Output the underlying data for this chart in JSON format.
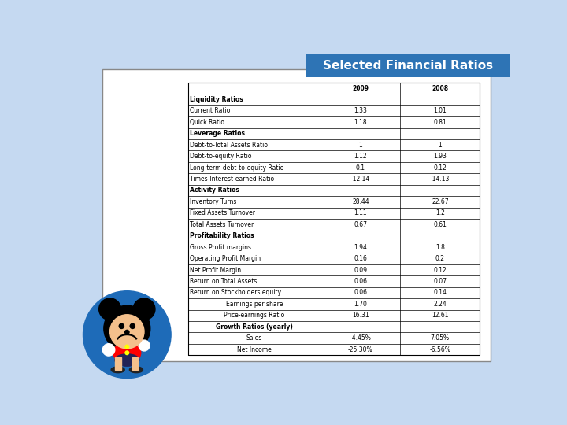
{
  "title": "Selected Financial Ratios",
  "title_bg": "#2E74B5",
  "title_color": "#FFFFFF",
  "rows": [
    {
      "label": "Liquidity Ratios",
      "val2009": "",
      "val2008": "",
      "bold": true,
      "center_label": false
    },
    {
      "label": "Current Ratio",
      "val2009": "1.33",
      "val2008": "1.01",
      "bold": false,
      "center_label": false
    },
    {
      "label": "Quick Ratio",
      "val2009": "1.18",
      "val2008": "0.81",
      "bold": false,
      "center_label": false
    },
    {
      "label": "Leverage Ratios",
      "val2009": "",
      "val2008": "",
      "bold": true,
      "center_label": false
    },
    {
      "label": "Debt-to-Total Assets Ratio",
      "val2009": "1",
      "val2008": "1",
      "bold": false,
      "center_label": false
    },
    {
      "label": "Debt-to-equity Ratio",
      "val2009": "1.12",
      "val2008": "1.93",
      "bold": false,
      "center_label": false
    },
    {
      "label": "Long-term debt-to-equity Ratio",
      "val2009": "0.1",
      "val2008": "0.12",
      "bold": false,
      "center_label": false
    },
    {
      "label": "Times-Interest-earned Ratio",
      "val2009": "-12.14",
      "val2008": "-14.13",
      "bold": false,
      "center_label": false
    },
    {
      "label": "Activity Ratios",
      "val2009": "",
      "val2008": "",
      "bold": true,
      "center_label": false
    },
    {
      "label": "Inventory Turns",
      "val2009": "28.44",
      "val2008": "22.67",
      "bold": false,
      "center_label": false
    },
    {
      "label": "Fixed Assets Turnover",
      "val2009": "1.11",
      "val2008": "1.2",
      "bold": false,
      "center_label": false
    },
    {
      "label": "Total Assets Turnover",
      "val2009": "0.67",
      "val2008": "0.61",
      "bold": false,
      "center_label": false
    },
    {
      "label": "Profitability Ratios",
      "val2009": "",
      "val2008": "",
      "bold": true,
      "center_label": false
    },
    {
      "label": "Gross Profit margins",
      "val2009": "1.94",
      "val2008": "1.8",
      "bold": false,
      "center_label": false
    },
    {
      "label": "Operating Profit Margin",
      "val2009": "0.16",
      "val2008": "0.2",
      "bold": false,
      "center_label": false
    },
    {
      "label": "Net Profit Margin",
      "val2009": "0.09",
      "val2008": "0.12",
      "bold": false,
      "center_label": false
    },
    {
      "label": "Return on Total Assets",
      "val2009": "0.06",
      "val2008": "0.07",
      "bold": false,
      "center_label": false
    },
    {
      "label": "Return on Stockholders equity",
      "val2009": "0.06",
      "val2008": "0.14",
      "bold": false,
      "center_label": false
    },
    {
      "label": "Earnings per share",
      "val2009": "1.70",
      "val2008": "2.24",
      "bold": false,
      "center_label": true
    },
    {
      "label": "Price-earnings Ratio",
      "val2009": "16.31",
      "val2008": "12.61",
      "bold": false,
      "center_label": true
    },
    {
      "label": "Growth Ratios (yearly)",
      "val2009": "",
      "val2008": "",
      "bold": true,
      "center_label": true
    },
    {
      "label": "Sales",
      "val2009": "-4.45%",
      "val2008": "7.05%",
      "bold": false,
      "center_label": true
    },
    {
      "label": "Net Income",
      "val2009": "-25.30%",
      "val2008": "-6.56%",
      "bold": false,
      "center_label": true
    }
  ],
  "bg_color": "#C5D9F1",
  "table_bg": "#FFFFFF",
  "border_color": "#000000",
  "text_color": "#000000"
}
